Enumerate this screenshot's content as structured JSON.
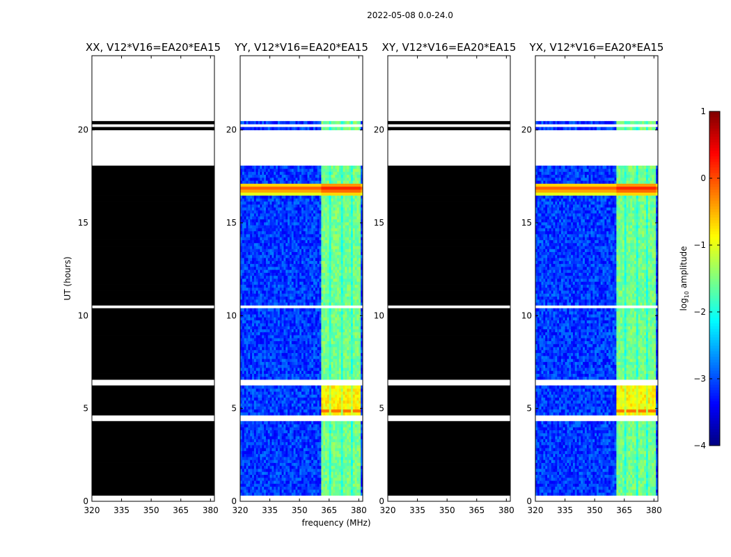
{
  "chart_data": {
    "type": "heatmap",
    "title": "2022-05-08 0.0-24.0",
    "xlabel": "frequency (MHz)",
    "ylabel": "UT (hours)",
    "xlim": [
      320,
      382
    ],
    "ylim": [
      0,
      24
    ],
    "xticks": [
      320,
      335,
      350,
      365,
      380
    ],
    "yticks": [
      0,
      5,
      10,
      15,
      20
    ],
    "panels": [
      {
        "title": "XX, V12*V16=EA20*EA15",
        "content": "all zero (black) where data present"
      },
      {
        "title": "YY, V12*V16=EA20*EA15",
        "content": "spectrogram"
      },
      {
        "title": "XY, V12*V16=EA20*EA15",
        "content": "all zero (black) where data present"
      },
      {
        "title": "YX, V12*V16=EA20*EA15",
        "content": "spectrogram"
      }
    ],
    "colorbar": {
      "label": "log10 amplitude",
      "label_base": "log",
      "label_sub": "10",
      "label_rest": " amplitude",
      "ticks": [
        1,
        0,
        -1,
        -2,
        -3,
        -4
      ],
      "tick_labels": [
        "1",
        "0",
        "−1",
        "−2",
        "−3",
        "−4"
      ],
      "range": [
        -4,
        1
      ],
      "colormap": "jet"
    },
    "data_present_hours": [
      [
        0.35,
        2.2
      ],
      [
        2.3,
        4.4
      ],
      [
        4.6,
        6.3
      ],
      [
        6.5,
        10.35
      ],
      [
        10.6,
        18.1
      ],
      [
        19.95,
        20.1
      ],
      [
        20.3,
        20.55
      ]
    ],
    "rfi_band_mhz": [
      361,
      380.5
    ],
    "rfi_channel_edges_mhz": [
      361,
      365.2,
      366.2,
      370.6,
      371.6,
      375.8,
      376.8,
      380.5
    ],
    "strong_event_hours": [
      16.5,
      17.2
    ]
  }
}
